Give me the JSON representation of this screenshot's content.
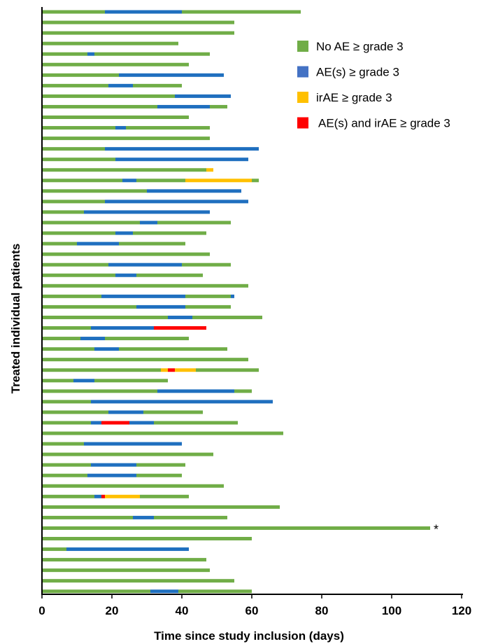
{
  "chart_data": {
    "type": "bar",
    "orientation": "horizontal-stacked-swimmer",
    "xlabel": "Time since study inclusion (days)",
    "ylabel": "Treated individual patients",
    "xlim": [
      0,
      120
    ],
    "xticks": [
      "0",
      "20",
      "40",
      "60",
      "80",
      "100",
      "120"
    ],
    "grid": false,
    "legend_position": "top-right",
    "legend": [
      {
        "key": "no_ae",
        "label": "No AE ≥ grade 3",
        "color": "#70ad47"
      },
      {
        "key": "ae",
        "label": "AE(s) ≥ grade 3",
        "color": "#4472c4"
      },
      {
        "key": "irae",
        "label": "irAE ≥ grade 3",
        "color": "#ffc000"
      },
      {
        "key": "both",
        "label": "AE(s) and irAE ≥ grade 3",
        "color": "#ff0000"
      }
    ],
    "segment_colors": {
      "G": "#70ad47",
      "B": "#1f6fbf",
      "Y": "#ffc000",
      "R": "#ff0000"
    },
    "annotations": [
      {
        "text": "*",
        "patient_index": 46
      }
    ],
    "patients": [
      [
        [
          "G",
          18
        ],
        [
          "B",
          40
        ],
        [
          "G",
          74
        ]
      ],
      [
        [
          "G",
          55
        ]
      ],
      [
        [
          "G",
          55
        ]
      ],
      [
        [
          "G",
          39
        ]
      ],
      [
        [
          "G",
          13
        ],
        [
          "B",
          15
        ],
        [
          "G",
          48
        ]
      ],
      [
        [
          "G",
          42
        ]
      ],
      [
        [
          "G",
          22
        ],
        [
          "B",
          52
        ]
      ],
      [
        [
          "G",
          19
        ],
        [
          "B",
          26
        ],
        [
          "G",
          40
        ]
      ],
      [
        [
          "G",
          38
        ],
        [
          "B",
          54
        ]
      ],
      [
        [
          "G",
          33
        ],
        [
          "B",
          48
        ],
        [
          "G",
          53
        ]
      ],
      [
        [
          "G",
          42
        ]
      ],
      [
        [
          "G",
          21
        ],
        [
          "B",
          24
        ],
        [
          "G",
          48
        ]
      ],
      [
        [
          "G",
          48
        ]
      ],
      [
        [
          "G",
          18
        ],
        [
          "B",
          62
        ]
      ],
      [
        [
          "G",
          21
        ],
        [
          "B",
          59
        ]
      ],
      [
        [
          "G",
          47
        ],
        [
          "Y",
          49
        ]
      ],
      [
        [
          "G",
          23
        ],
        [
          "B",
          27
        ],
        [
          "G",
          41
        ],
        [
          "Y",
          60
        ],
        [
          "G",
          62
        ]
      ],
      [
        [
          "G",
          30
        ],
        [
          "B",
          57
        ]
      ],
      [
        [
          "G",
          18
        ],
        [
          "B",
          59
        ]
      ],
      [
        [
          "G",
          12
        ],
        [
          "B",
          48
        ]
      ],
      [
        [
          "G",
          28
        ],
        [
          "B",
          33
        ],
        [
          "G",
          54
        ]
      ],
      [
        [
          "G",
          21
        ],
        [
          "B",
          26
        ],
        [
          "G",
          47
        ]
      ],
      [
        [
          "G",
          10
        ],
        [
          "B",
          22
        ],
        [
          "G",
          41
        ]
      ],
      [
        [
          "G",
          48
        ]
      ],
      [
        [
          "G",
          19
        ],
        [
          "B",
          40
        ],
        [
          "G",
          54
        ]
      ],
      [
        [
          "G",
          21
        ],
        [
          "B",
          27
        ],
        [
          "G",
          46
        ]
      ],
      [
        [
          "G",
          59
        ]
      ],
      [
        [
          "G",
          17
        ],
        [
          "B",
          41
        ],
        [
          "G",
          54
        ],
        [
          "B",
          55
        ]
      ],
      [
        [
          "G",
          27
        ],
        [
          "B",
          41
        ],
        [
          "G",
          54
        ]
      ],
      [
        [
          "G",
          36
        ],
        [
          "B",
          43
        ],
        [
          "G",
          63
        ]
      ],
      [
        [
          "G",
          14
        ],
        [
          "B",
          32
        ],
        [
          "R",
          47
        ]
      ],
      [
        [
          "G",
          11
        ],
        [
          "B",
          18
        ],
        [
          "G",
          42
        ]
      ],
      [
        [
          "G",
          15
        ],
        [
          "B",
          22
        ],
        [
          "G",
          53
        ]
      ],
      [
        [
          "G",
          59
        ]
      ],
      [
        [
          "G",
          34
        ],
        [
          "Y",
          36
        ],
        [
          "R",
          38
        ],
        [
          "Y",
          44
        ],
        [
          "G",
          62
        ]
      ],
      [
        [
          "G",
          9
        ],
        [
          "B",
          15
        ],
        [
          "G",
          36
        ]
      ],
      [
        [
          "G",
          33
        ],
        [
          "B",
          55
        ],
        [
          "G",
          60
        ]
      ],
      [
        [
          "G",
          14
        ],
        [
          "B",
          66
        ]
      ],
      [
        [
          "G",
          19
        ],
        [
          "B",
          29
        ],
        [
          "G",
          46
        ]
      ],
      [
        [
          "G",
          14
        ],
        [
          "B",
          17
        ],
        [
          "R",
          25
        ],
        [
          "B",
          32
        ],
        [
          "G",
          56
        ]
      ],
      [
        [
          "G",
          69
        ]
      ],
      [
        [
          "G",
          12
        ],
        [
          "B",
          40
        ]
      ],
      [
        [
          "G",
          49
        ]
      ],
      [
        [
          "G",
          14
        ],
        [
          "B",
          27
        ],
        [
          "G",
          41
        ]
      ],
      [
        [
          "G",
          13
        ],
        [
          "B",
          27
        ],
        [
          "G",
          40
        ]
      ],
      [
        [
          "G",
          52
        ]
      ],
      [
        [
          "G",
          15
        ],
        [
          "B",
          17
        ],
        [
          "R",
          18
        ],
        [
          "Y",
          28
        ],
        [
          "G",
          42
        ]
      ],
      [
        [
          "G",
          68
        ]
      ],
      [
        [
          "G",
          26
        ],
        [
          "B",
          32
        ],
        [
          "G",
          53
        ]
      ],
      [
        [
          "G",
          111
        ]
      ],
      [
        [
          "G",
          60
        ]
      ],
      [
        [
          "G",
          7
        ],
        [
          "B",
          42
        ]
      ],
      [
        [
          "G",
          47
        ]
      ],
      [
        [
          "G",
          48
        ]
      ],
      [
        [
          "G",
          55
        ]
      ],
      [
        [
          "G",
          31
        ],
        [
          "B",
          39
        ],
        [
          "G",
          60
        ]
      ]
    ]
  }
}
